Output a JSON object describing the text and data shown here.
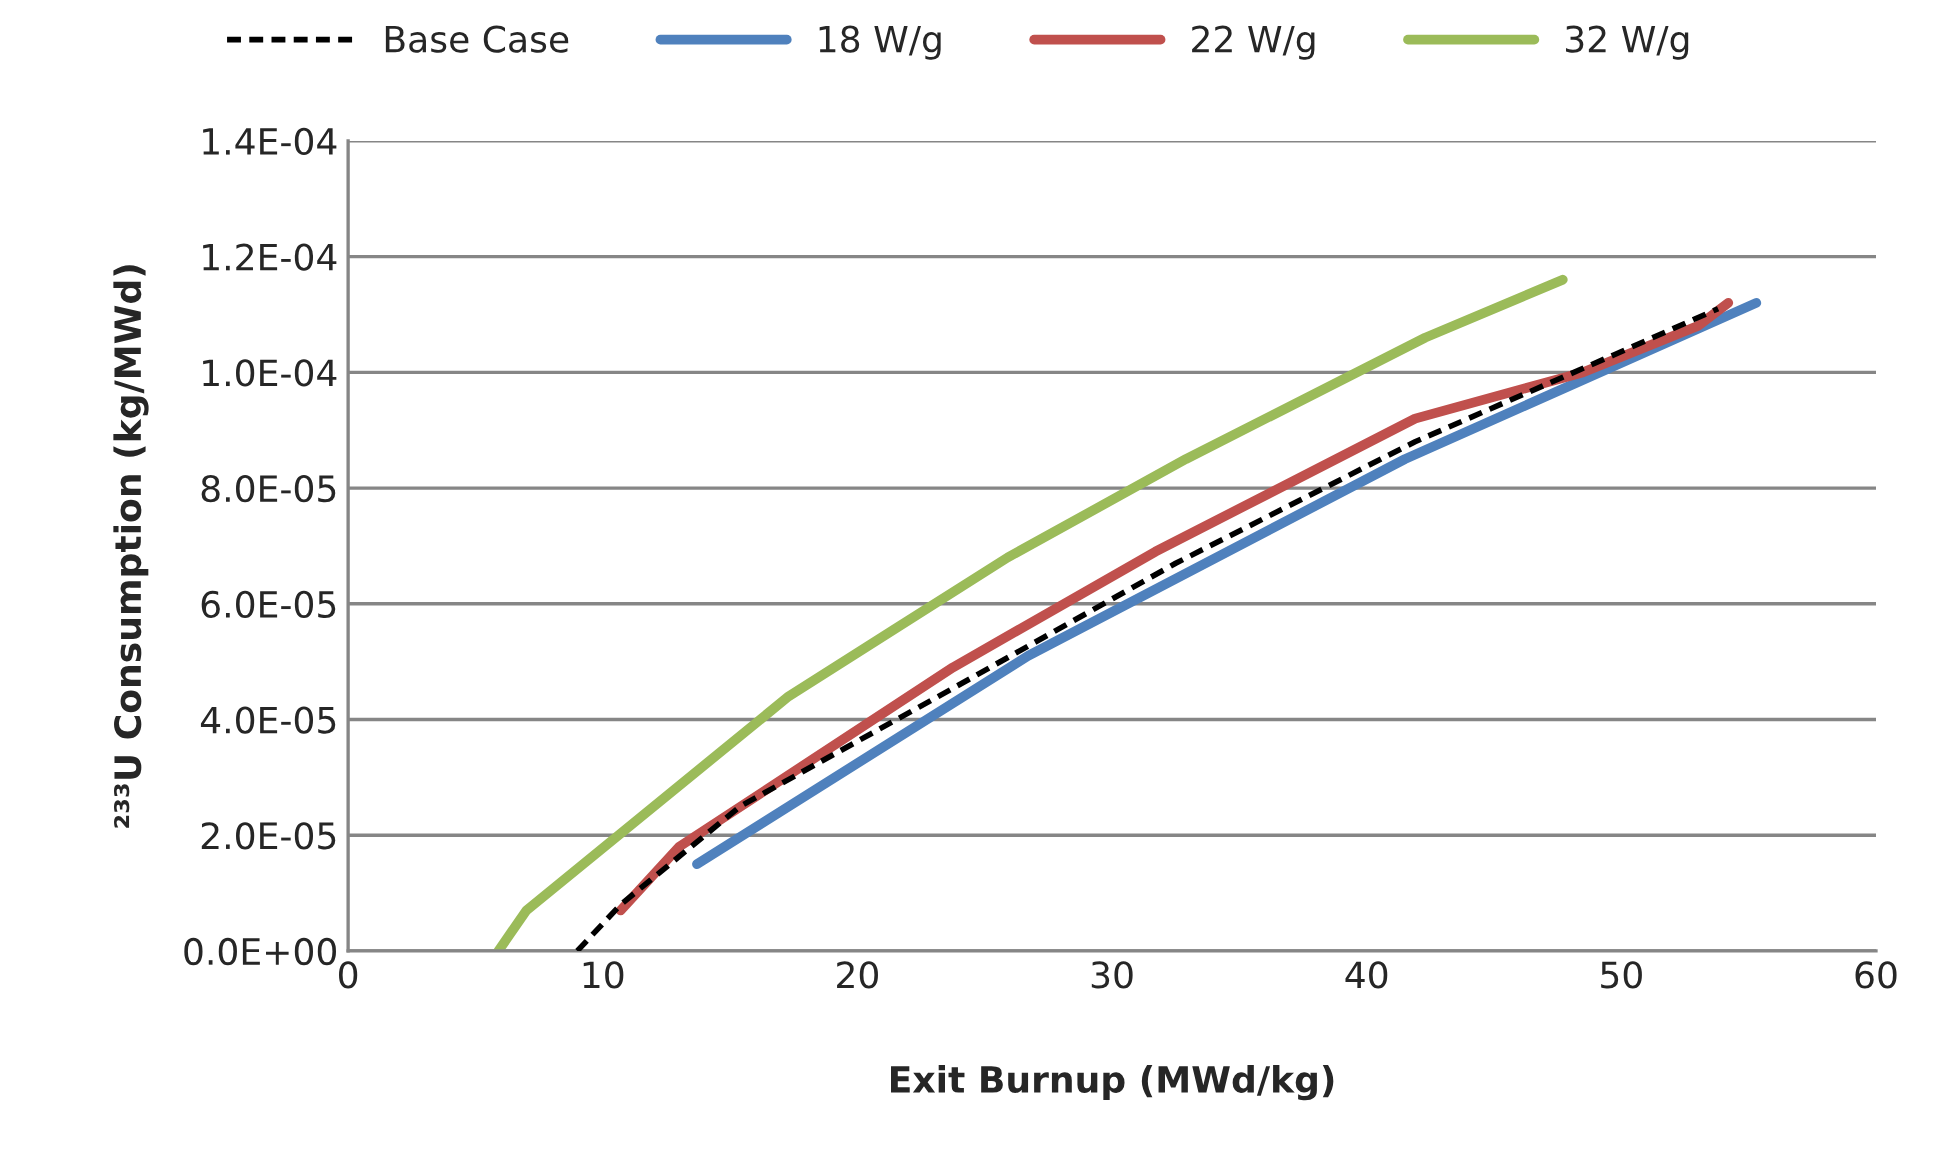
{
  "chart_data": {
    "type": "line",
    "xlabel": "Exit Burnup (MWd/kg)",
    "ylabel": "²³³U Consumption (kg/MWd)",
    "xlim": [
      0,
      60
    ],
    "xticks": [
      0,
      10,
      20,
      30,
      40,
      50,
      60
    ],
    "ylim": [
      0,
      0.00014
    ],
    "yticks": [
      {
        "value": 0,
        "label": "0.0E+00"
      },
      {
        "value": 2e-05,
        "label": "2.0E-05"
      },
      {
        "value": 4e-05,
        "label": "4.0E-05"
      },
      {
        "value": 6e-05,
        "label": "6.0E-05"
      },
      {
        "value": 8e-05,
        "label": "8.0E-05"
      },
      {
        "value": 0.0001,
        "label": "1.0E-04"
      },
      {
        "value": 0.00012,
        "label": "1.2E-04"
      },
      {
        "value": 0.00014,
        "label": "1.4E-04"
      }
    ],
    "grid": "y",
    "legend": "top",
    "marker": "none",
    "series": [
      {
        "name": "Base Case",
        "color": "#000000",
        "line_style": "dashed",
        "x": [
          9.0,
          10.7,
          15.4,
          24.0,
          32.5,
          41.9,
          49.7,
          53.8
        ],
        "values": [
          0.0,
          8e-06,
          2.5e-05,
          4.6e-05,
          6.7e-05,
          8.8e-05,
          0.000103,
          0.000111
        ]
      },
      {
        "name": "18 W/g",
        "color": "#4f81bd",
        "line_style": "solid",
        "x": [
          13.7,
          26.7,
          41.5,
          55.3
        ],
        "values": [
          1.5e-05,
          5.1e-05,
          8.5e-05,
          0.000112
        ]
      },
      {
        "name": "22 W/g",
        "color": "#c0504d",
        "line_style": "solid",
        "x": [
          10.7,
          13.0,
          23.75,
          31.7,
          41.9,
          48.5,
          53.0,
          54.2
        ],
        "values": [
          7e-06,
          1.8e-05,
          4.9e-05,
          6.9e-05,
          9.2e-05,
          0.0001,
          0.000108,
          0.000112
        ]
      },
      {
        "name": "32 W/g",
        "color": "#9bbb59",
        "line_style": "solid",
        "x": [
          5.9,
          7.0,
          17.3,
          21.6,
          25.9,
          32.9,
          42.3,
          47.7
        ],
        "values": [
          0.0,
          7e-06,
          4.4e-05,
          5.6e-05,
          6.8e-05,
          8.5e-05,
          0.000106,
          0.000116
        ]
      }
    ]
  }
}
